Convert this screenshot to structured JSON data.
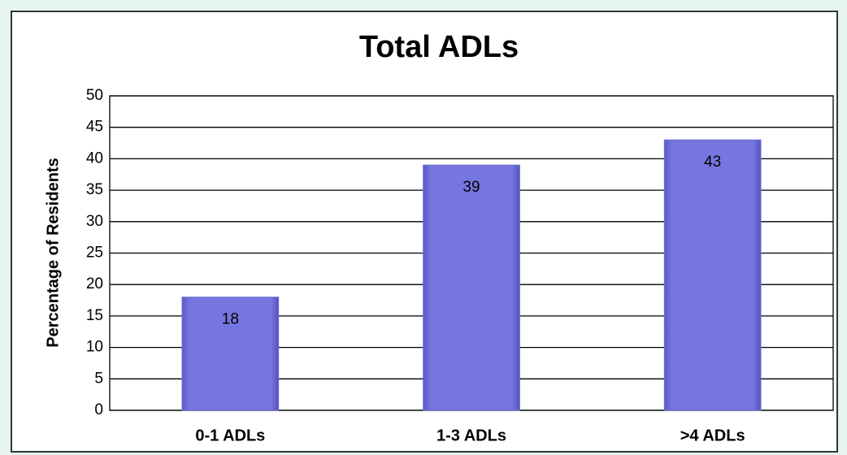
{
  "chart_data": {
    "type": "bar",
    "title": "Total ADLs",
    "y_label": "Percentage of Residents",
    "categories": [
      "0-1 ADLs",
      "1-3 ADLs",
      ">4 ADLs"
    ],
    "values": [
      18,
      39,
      43
    ],
    "color": "#7373db",
    "ylim": [
      0,
      50
    ],
    "yticks": [
      0,
      5,
      10,
      15,
      20,
      25,
      30,
      35,
      40,
      45,
      50
    ],
    "grid": true
  }
}
